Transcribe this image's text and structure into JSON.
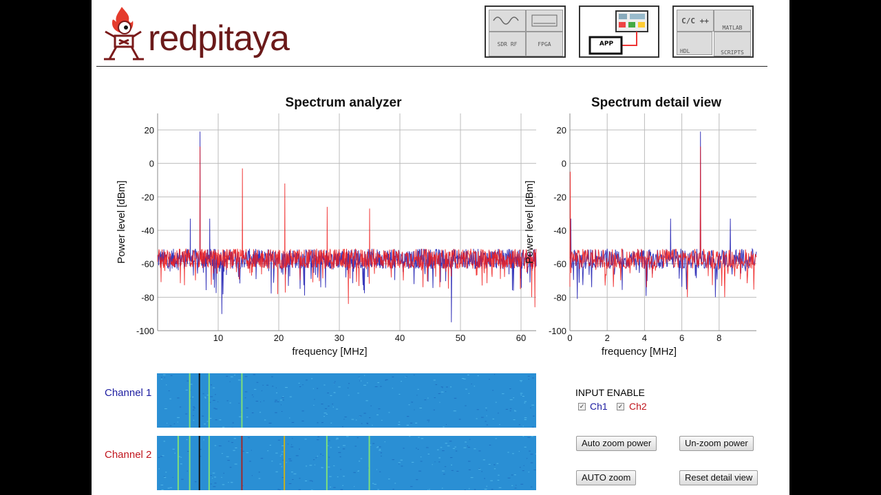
{
  "brand": {
    "name": "redpitaya",
    "logo_color": "#6b1a1a",
    "flame_color": "#e53b2c"
  },
  "header_icons": [
    {
      "name": "instruments-tile",
      "cells": [
        "",
        "",
        "SDR RF",
        "FPGA"
      ]
    },
    {
      "name": "app-tile",
      "cells": [
        "APP"
      ]
    },
    {
      "name": "development-tile",
      "cells": [
        "C/C ++",
        "MATLAB",
        "HDL",
        "SCRIPTS"
      ]
    }
  ],
  "chart_data": [
    {
      "type": "line",
      "title": "Spectrum analyzer",
      "xlabel": "frequency [MHz]",
      "ylabel": "Power level [dBm]",
      "xlim": [
        0,
        62.5
      ],
      "ylim": [
        -100,
        30
      ],
      "xticks": [
        10,
        20,
        30,
        40,
        50,
        60
      ],
      "yticks": [
        20,
        0,
        -20,
        -40,
        -60,
        -80,
        -100
      ],
      "grid": true,
      "noise_floor_dBm": -57,
      "series": [
        {
          "color": "#2323b4",
          "peaks": [
            [
              5.4,
              -33
            ],
            [
              7.0,
              19
            ],
            [
              8.6,
              -33
            ]
          ],
          "dips": [
            [
              10.6,
              -90
            ],
            [
              48.5,
              -95
            ]
          ]
        },
        {
          "color": "#ee1c1c",
          "peaks": [
            [
              7.0,
              10
            ],
            [
              14.0,
              -3
            ],
            [
              21.0,
              -12
            ],
            [
              28.0,
              -26
            ],
            [
              35.0,
              -27
            ]
          ],
          "dips": [
            [
              31.5,
              -84
            ],
            [
              62.3,
              -86
            ]
          ]
        }
      ]
    },
    {
      "type": "line",
      "title": "Spectrum detail view",
      "xlabel": "frequency [MHz]",
      "ylabel": "Power level [dBm]",
      "xlim": [
        0,
        10
      ],
      "ylim": [
        -100,
        30
      ],
      "xticks": [
        0,
        2,
        4,
        6,
        8
      ],
      "yticks": [
        20,
        0,
        -20,
        -40,
        -60,
        -80,
        -100
      ],
      "grid": true,
      "noise_floor_dBm": -57,
      "series": [
        {
          "color": "#2323b4",
          "peaks": [
            [
              0.05,
              -33
            ],
            [
              5.4,
              -33
            ],
            [
              7.0,
              19
            ],
            [
              8.6,
              -33
            ]
          ],
          "dips": [
            [
              0.4,
              -81
            ],
            [
              7.8,
              -80
            ]
          ]
        },
        {
          "color": "#ee1c1c",
          "peaks": [
            [
              0.02,
              -5
            ],
            [
              7.0,
              10
            ]
          ],
          "dips": [
            [
              6.3,
              -80
            ],
            [
              8.3,
              -80
            ]
          ]
        }
      ]
    }
  ],
  "waterfall": {
    "channel1_label": "Channel 1",
    "channel2_label": "Channel 2",
    "channel1_color": "#1c1ca0",
    "channel2_color": "#c0141c",
    "channel1_lines_mhz": [
      5.4,
      7.0,
      8.6,
      14.0
    ],
    "channel2_lines_mhz": [
      3.5,
      5.4,
      7.0,
      8.6,
      14.0,
      21.0,
      28.0,
      35.0
    ]
  },
  "controls": {
    "input_enable_title": "INPUT ENABLE",
    "ch1_label": "Ch1",
    "ch2_label": "Ch2",
    "ch1_checked": true,
    "ch2_checked": true,
    "auto_zoom_power": "Auto zoom power",
    "unzoom_power": "Un-zoom power",
    "auto_zoom": "AUTO zoom",
    "reset_detail_view": "Reset detail view"
  }
}
